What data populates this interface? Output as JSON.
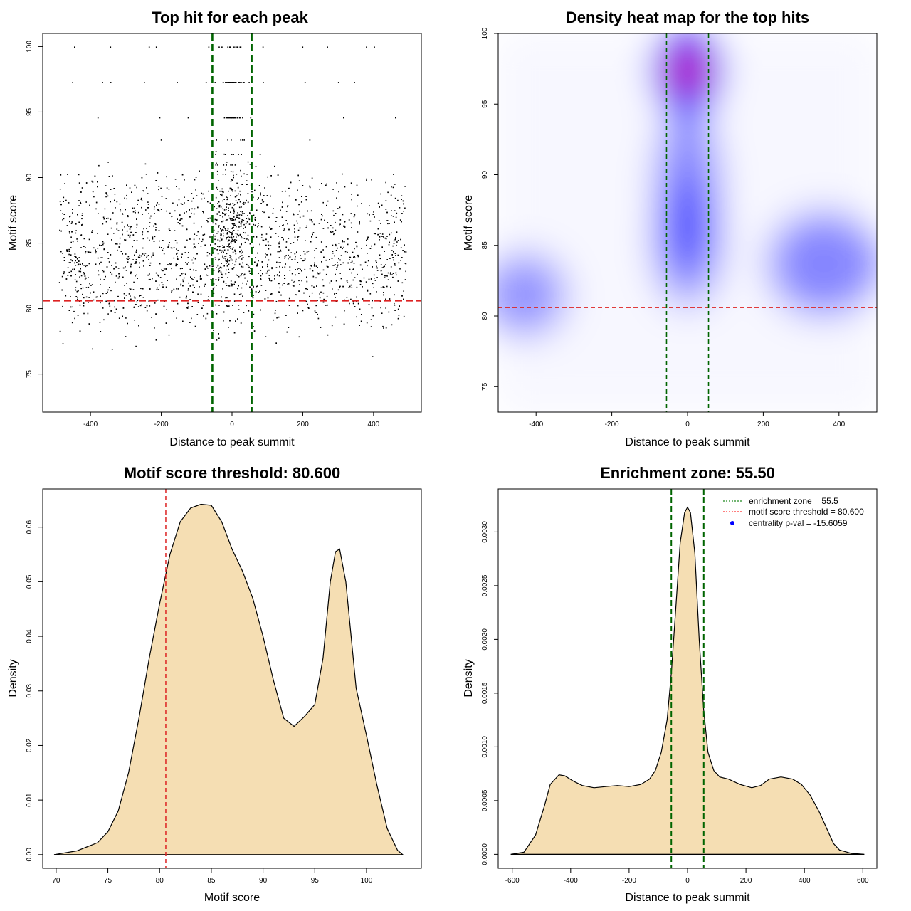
{
  "chart_data": [
    {
      "type": "scatter",
      "title": "Top hit for each peak",
      "xlabel": "Distance to peak summit",
      "ylabel": "Motif score",
      "xlim": [
        -535,
        535
      ],
      "ylim": [
        72.1,
        101.0
      ],
      "xticks": [
        -400,
        -200,
        0,
        200,
        400
      ],
      "yticks": [
        75,
        80,
        85,
        90,
        95,
        100
      ],
      "hline": {
        "y": 80.6,
        "color": "#dd2222"
      },
      "vlines": [
        {
          "x": -55.5,
          "color": "#006400"
        },
        {
          "x": 55.5,
          "color": "#006400"
        }
      ],
      "score_levels": [
        100.0,
        97.3,
        94.6,
        92.9,
        91.8,
        91.0,
        90.3,
        89.0,
        88.0,
        87.3
      ],
      "score_level_counts": [
        22,
        45,
        24,
        8,
        8,
        8,
        6,
        6,
        6,
        6
      ],
      "n_points": 2400,
      "point_color": "#000000"
    },
    {
      "type": "heatmap",
      "title": "Density heat map for the top hits",
      "xlabel": "Distance to peak summit",
      "ylabel": "Motif score",
      "xlim": [
        -500,
        500
      ],
      "ylim": [
        73.2,
        100.0
      ],
      "xticks": [
        -400,
        -200,
        0,
        200,
        400
      ],
      "yticks": [
        75,
        80,
        85,
        90,
        95,
        100
      ],
      "hline": {
        "y": 80.6,
        "color": "#dd2222"
      },
      "vlines": [
        {
          "x": -55.5,
          "color": "#006400"
        },
        {
          "x": 55.5,
          "color": "#006400"
        }
      ],
      "blobs": [
        {
          "x": 0,
          "y": 97.3,
          "w": 1.0
        },
        {
          "x": 0,
          "y": 89,
          "w": 0.45
        },
        {
          "x": 0,
          "y": 85,
          "w": 0.35
        },
        {
          "x": -430,
          "y": 81.5,
          "w": 0.4
        },
        {
          "x": 360,
          "y": 83.7,
          "w": 0.45
        }
      ],
      "colors": [
        "#ffffff",
        "#0000ff",
        "#ff0000"
      ]
    },
    {
      "type": "area",
      "title": "Motif score threshold: 80.600",
      "xlabel": "Motif score",
      "ylabel": "Density",
      "xlim": [
        68.7,
        105.3
      ],
      "ylim": [
        -0.0025,
        0.067
      ],
      "xticks": [
        70,
        75,
        80,
        85,
        90,
        95,
        100
      ],
      "yticks": [
        0.0,
        0.01,
        0.02,
        0.03,
        0.04,
        0.05,
        0.06
      ],
      "ytick_labels": [
        "0.00",
        "0.01",
        "0.02",
        "0.03",
        "0.04",
        "0.05",
        "0.06"
      ],
      "x": [
        69.8,
        72.0,
        74.0,
        75.0,
        76.0,
        77.0,
        78.0,
        79.0,
        80.0,
        81.0,
        82.0,
        83.0,
        84.0,
        85.0,
        86.0,
        87.0,
        88.0,
        89.0,
        90.0,
        91.0,
        92.0,
        93.0,
        94.0,
        95.0,
        95.8,
        96.5,
        97.0,
        97.4,
        98.0,
        99.0,
        100.0,
        101.0,
        102.0,
        103.0,
        103.5
      ],
      "y": [
        0.0,
        0.0007,
        0.0022,
        0.0042,
        0.008,
        0.015,
        0.025,
        0.036,
        0.046,
        0.055,
        0.061,
        0.0635,
        0.0642,
        0.064,
        0.061,
        0.056,
        0.052,
        0.047,
        0.04,
        0.032,
        0.025,
        0.0235,
        0.0253,
        0.0275,
        0.036,
        0.05,
        0.0555,
        0.056,
        0.05,
        0.0305,
        0.0218,
        0.0128,
        0.0048,
        0.0008,
        0.0
      ],
      "fill": "#f5deb3",
      "vline": {
        "x": 80.6,
        "color": "#dd2222"
      }
    },
    {
      "type": "area",
      "title": "Enrichment zone: 55.50",
      "xlabel": "Distance to peak summit",
      "ylabel": "Density",
      "xlim": [
        -648,
        648
      ],
      "ylim": [
        -0.00013,
        0.0034
      ],
      "xticks": [
        -600,
        -400,
        -200,
        0,
        200,
        400,
        600
      ],
      "yticks": [
        0.0,
        0.0005,
        0.001,
        0.0015,
        0.002,
        0.0025,
        0.003
      ],
      "ytick_labels": [
        "0.0000",
        "0.0005",
        "0.0010",
        "0.0015",
        "0.0020",
        "0.0025",
        "0.0030"
      ],
      "x": [
        -605,
        -560,
        -520,
        -490,
        -470,
        -440,
        -420,
        -390,
        -360,
        -320,
        -280,
        -240,
        -200,
        -160,
        -130,
        -110,
        -90,
        -70,
        -55,
        -40,
        -25,
        -10,
        0,
        10,
        25,
        40,
        55,
        70,
        90,
        110,
        140,
        180,
        220,
        250,
        280,
        320,
        360,
        390,
        420,
        450,
        480,
        500,
        520,
        560,
        605
      ],
      "y": [
        0.0,
        2e-05,
        0.00018,
        0.00045,
        0.00065,
        0.00074,
        0.00073,
        0.00068,
        0.00064,
        0.00062,
        0.00063,
        0.00064,
        0.00063,
        0.00065,
        0.0007,
        0.00078,
        0.00095,
        0.00125,
        0.0017,
        0.0023,
        0.0029,
        0.00318,
        0.00323,
        0.00318,
        0.0028,
        0.002,
        0.00135,
        0.00095,
        0.00078,
        0.00072,
        0.0007,
        0.00065,
        0.00062,
        0.00064,
        0.0007,
        0.00072,
        0.0007,
        0.00065,
        0.00055,
        0.0004,
        0.00022,
        0.0001,
        4e-05,
        1e-05,
        0.0
      ],
      "fill": "#f5deb3",
      "vlines": [
        {
          "x": -55.5,
          "color": "#006400"
        },
        {
          "x": 55.5,
          "color": "#006400"
        }
      ],
      "legend": {
        "placement": "top-right",
        "entries": [
          {
            "label": "enrichment zone = 55.5",
            "color": "#228B22",
            "style": "dotted-line"
          },
          {
            "label": "motif score threshold = 80.600",
            "color": "#ff3333",
            "style": "dotted-line"
          },
          {
            "label": "centrality p-val = -15.6059",
            "color": "#0000ff",
            "style": "dot"
          }
        ]
      }
    }
  ]
}
